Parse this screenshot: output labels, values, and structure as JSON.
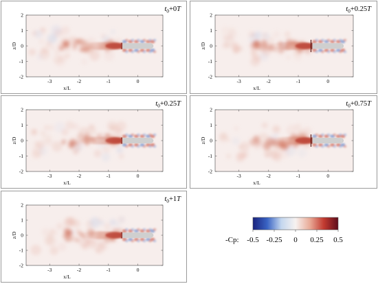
{
  "figure": {
    "x_label": "x/L",
    "y_label": "z/D"
  },
  "chart_data": [
    {
      "type": "heatmap",
      "title_base": "t",
      "title_sub": "0",
      "title_plus": "+",
      "title_coef": "0",
      "title_T": "T",
      "xlabel": "x/L",
      "ylabel": "z/D",
      "xlim": [
        -3.8,
        0.85
      ],
      "ylim": [
        -2,
        2
      ],
      "x_ticks": [
        "-3",
        "-2",
        "-1",
        "0"
      ],
      "y_ticks": [
        "-2",
        "-1",
        "0",
        "1",
        "2"
      ],
      "grid": false
    },
    {
      "type": "heatmap",
      "title_base": "t",
      "title_sub": "0",
      "title_plus": "+",
      "title_coef": "0.25",
      "title_T": "T",
      "xlabel": "x/L",
      "ylabel": "z/D",
      "xlim": [
        -3.8,
        0.85
      ],
      "ylim": [
        -2,
        2
      ],
      "x_ticks": [
        "-3",
        "-2",
        "-1",
        "0"
      ],
      "y_ticks": [
        "-2",
        "-1",
        "0",
        "1",
        "2"
      ],
      "grid": false
    },
    {
      "type": "heatmap",
      "title_base": "t",
      "title_sub": "0",
      "title_plus": "+",
      "title_coef": "0.25",
      "title_T": "T",
      "xlabel": "x/L",
      "ylabel": "z/D",
      "xlim": [
        -3.8,
        0.85
      ],
      "ylim": [
        -2,
        2
      ],
      "x_ticks": [
        "-3",
        "-2",
        "-1",
        "0"
      ],
      "y_ticks": [
        "-2",
        "-1",
        "0",
        "1",
        "2"
      ],
      "grid": false
    },
    {
      "type": "heatmap",
      "title_base": "t",
      "title_sub": "0",
      "title_plus": "+",
      "title_coef": "0.75",
      "title_T": "T",
      "xlabel": "x/L",
      "ylabel": "z/D",
      "xlim": [
        -3.8,
        0.85
      ],
      "ylim": [
        -2,
        2
      ],
      "x_ticks": [
        "-3",
        "-2",
        "-1",
        "0"
      ],
      "y_ticks": [
        "-2",
        "-1",
        "0",
        "1",
        "2"
      ],
      "grid": false
    },
    {
      "type": "heatmap",
      "title_base": "t",
      "title_sub": "0",
      "title_plus": "+",
      "title_coef": "1",
      "title_T": "T",
      "xlabel": "x/L",
      "ylabel": "z/D",
      "xlim": [
        -3.8,
        0.85
      ],
      "ylim": [
        -2,
        2
      ],
      "x_ticks": [
        "-3",
        "-2",
        "-1",
        "0"
      ],
      "y_ticks": [
        "-2",
        "-1",
        "0",
        "1",
        "2"
      ],
      "grid": false
    }
  ],
  "colorbar": {
    "label": "-Cp:",
    "range": [
      -0.5,
      0.5
    ],
    "ticks": [
      "-0.5",
      "-0.25",
      "0",
      "0.25",
      "0.5"
    ],
    "colors": [
      "#1a237e",
      "#3a64c4",
      "#c4d7ef",
      "#f7f2f0",
      "#e9ab98",
      "#c23a30",
      "#5e0d1c"
    ]
  }
}
